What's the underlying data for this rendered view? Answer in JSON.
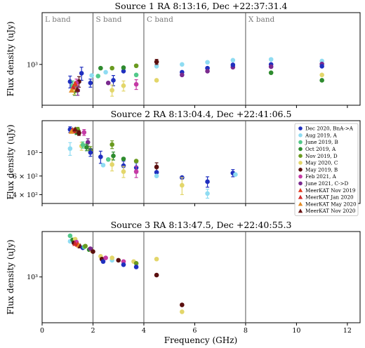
{
  "chart_data": {
    "type": "scatter",
    "xlabel": "Frequency (GHz)",
    "ylabel": "Flux density (uJy)",
    "xlim": [
      0,
      12.5
    ],
    "xticks": [
      "0",
      "2",
      "4",
      "6",
      "8",
      "10",
      "12"
    ],
    "ylog": true,
    "grid": false,
    "legend_placement": "right (Source 2 panel)",
    "band_edges": [
      2,
      4,
      8
    ],
    "bands": [
      "L band",
      "S band",
      "C band",
      "X band"
    ],
    "series_styles": [
      {
        "name": "Dec 2020, BnA->A",
        "color": "#1f2fbf",
        "marker": "circle"
      },
      {
        "name": "Aug 2019, A",
        "color": "#8fdcf2",
        "marker": "circle"
      },
      {
        "name": "June 2019, B",
        "color": "#52c98a",
        "marker": "circle"
      },
      {
        "name": "Oct 2019, A",
        "color": "#2e8b2e",
        "marker": "circle"
      },
      {
        "name": "Nov 2019, D",
        "color": "#6a9a1f",
        "marker": "circle"
      },
      {
        "name": "May 2020, C",
        "color": "#e3d66a",
        "marker": "circle"
      },
      {
        "name": "May 2019, B",
        "color": "#5a0f0f",
        "marker": "circle"
      },
      {
        "name": "Feb 2021, A",
        "color": "#c53aa5",
        "marker": "circle"
      },
      {
        "name": "June 2021, C->D",
        "color": "#7a2a8e",
        "marker": "circle"
      },
      {
        "name": "MeerKAT Nov 2019",
        "color": "#e23a1f",
        "marker": "triangle"
      },
      {
        "name": "MeerKAT Jan 2020",
        "color": "#d02a2a",
        "marker": "triangle"
      },
      {
        "name": "MeerKAT May 2020",
        "color": "#e38a22",
        "marker": "triangle"
      },
      {
        "name": "MeerKAT Nov 2020",
        "color": "#6a1515",
        "marker": "triangle"
      }
    ],
    "panels": [
      {
        "title": "Source 1 RA 8:13:16, Dec +22:37:31.4",
        "ylim": [
          400,
          3200
        ],
        "yticks": [
          {
            "value": 1000,
            "label": "10³"
          }
        ],
        "show_xticklabels": false,
        "show_band_labels": true,
        "points": [
          {
            "s": 0,
            "x": 1.1,
            "y": 680,
            "err": 90
          },
          {
            "s": 0,
            "x": 1.55,
            "y": 820,
            "err": 120
          },
          {
            "s": 0,
            "x": 1.9,
            "y": 660,
            "err": 60
          },
          {
            "s": 2,
            "x": 1.2,
            "y": 620,
            "err": 70
          },
          {
            "s": 3,
            "x": 1.28,
            "y": 560,
            "err": 60
          },
          {
            "s": 4,
            "x": 1.3,
            "y": 600,
            "err": 70
          },
          {
            "s": 5,
            "x": 1.25,
            "y": 570,
            "err": 60
          },
          {
            "s": 6,
            "x": 1.45,
            "y": 680,
            "err": 80
          },
          {
            "s": 7,
            "x": 1.35,
            "y": 660,
            "err": 60
          },
          {
            "s": 8,
            "x": 1.4,
            "y": 560,
            "err": 60
          },
          {
            "s": 9,
            "x": 1.3,
            "y": 650,
            "err": 0
          },
          {
            "s": 10,
            "x": 1.22,
            "y": 600,
            "err": 0
          },
          {
            "s": 11,
            "x": 1.16,
            "y": 560,
            "err": 0
          },
          {
            "s": 12,
            "x": 1.38,
            "y": 570,
            "err": 0
          },
          {
            "s": 1,
            "x": 1.95,
            "y": 780,
            "err": 0
          },
          {
            "s": 0,
            "x": 2.8,
            "y": 700,
            "err": 80
          },
          {
            "s": 1,
            "x": 2.5,
            "y": 840,
            "err": 0
          },
          {
            "s": 2,
            "x": 2.2,
            "y": 770,
            "err": 0
          },
          {
            "s": 3,
            "x": 2.3,
            "y": 920,
            "err": 0
          },
          {
            "s": 4,
            "x": 2.75,
            "y": 920,
            "err": 0
          },
          {
            "s": 5,
            "x": 2.75,
            "y": 560,
            "err": 70
          },
          {
            "s": 8,
            "x": 2.6,
            "y": 660,
            "err": 0
          },
          {
            "s": 0,
            "x": 3.2,
            "y": 860,
            "err": 0
          },
          {
            "s": 3,
            "x": 3.2,
            "y": 930,
            "err": 0
          },
          {
            "s": 5,
            "x": 3.2,
            "y": 620,
            "err": 70
          },
          {
            "s": 2,
            "x": 3.7,
            "y": 790,
            "err": 0
          },
          {
            "s": 4,
            "x": 3.7,
            "y": 970,
            "err": 0
          },
          {
            "s": 7,
            "x": 3.7,
            "y": 640,
            "err": 70
          },
          {
            "s": 1,
            "x": 4.5,
            "y": 960,
            "err": 0
          },
          {
            "s": 6,
            "x": 4.5,
            "y": 1060,
            "err": 60
          },
          {
            "s": 5,
            "x": 4.5,
            "y": 700,
            "err": 0
          },
          {
            "s": 0,
            "x": 5.5,
            "y": 840,
            "err": 0
          },
          {
            "s": 1,
            "x": 5.5,
            "y": 1000,
            "err": 0
          },
          {
            "s": 8,
            "x": 5.5,
            "y": 790,
            "err": 0
          },
          {
            "s": 0,
            "x": 6.5,
            "y": 920,
            "err": 0
          },
          {
            "s": 1,
            "x": 6.5,
            "y": 1050,
            "err": 0
          },
          {
            "s": 8,
            "x": 6.5,
            "y": 860,
            "err": 0
          },
          {
            "s": 1,
            "x": 7.5,
            "y": 1100,
            "err": 0
          },
          {
            "s": 8,
            "x": 7.5,
            "y": 940,
            "err": 0
          },
          {
            "s": 0,
            "x": 7.5,
            "y": 990,
            "err": 0
          },
          {
            "s": 1,
            "x": 9.0,
            "y": 1120,
            "err": 0
          },
          {
            "s": 0,
            "x": 9.0,
            "y": 1000,
            "err": 0
          },
          {
            "s": 3,
            "x": 9.0,
            "y": 830,
            "err": 0
          },
          {
            "s": 8,
            "x": 9.0,
            "y": 950,
            "err": 0
          },
          {
            "s": 1,
            "x": 11.0,
            "y": 1080,
            "err": 0
          },
          {
            "s": 8,
            "x": 11.0,
            "y": 1010,
            "err": 0
          },
          {
            "s": 0,
            "x": 11.0,
            "y": 960,
            "err": 0
          },
          {
            "s": 5,
            "x": 11.0,
            "y": 790,
            "err": 0
          },
          {
            "s": 3,
            "x": 11.0,
            "y": 700,
            "err": 0
          }
        ]
      },
      {
        "title": "Source 2 RA 8:13:04.4, Dec +22:41:06.5",
        "ylim": [
          330,
          2000
        ],
        "yticks": [
          {
            "value": 1000,
            "label": "10³"
          },
          {
            "value": 600,
            "label": "6 × 10²"
          },
          {
            "value": 400,
            "label": "4 × 10²"
          }
        ],
        "show_xticklabels": false,
        "show_band_labels": false,
        "points": [
          {
            "s": 1,
            "x": 1.1,
            "y": 1090,
            "err": 150
          },
          {
            "s": 0,
            "x": 1.1,
            "y": 1650,
            "err": 100
          },
          {
            "s": 2,
            "x": 1.3,
            "y": 1620,
            "err": 80
          },
          {
            "s": 3,
            "x": 1.35,
            "y": 1560,
            "err": 80
          },
          {
            "s": 4,
            "x": 1.4,
            "y": 1650,
            "err": 80
          },
          {
            "s": 5,
            "x": 1.55,
            "y": 1150,
            "err": 100
          },
          {
            "s": 6,
            "x": 1.45,
            "y": 1530,
            "err": 80
          },
          {
            "s": 7,
            "x": 1.65,
            "y": 1550,
            "err": 100
          },
          {
            "s": 8,
            "x": 1.8,
            "y": 1250,
            "err": 100
          },
          {
            "s": 9,
            "x": 1.2,
            "y": 1640,
            "err": 0
          },
          {
            "s": 10,
            "x": 1.25,
            "y": 1600,
            "err": 0
          },
          {
            "s": 11,
            "x": 1.15,
            "y": 1580,
            "err": 0
          },
          {
            "s": 12,
            "x": 1.3,
            "y": 1660,
            "err": 0
          },
          {
            "s": 2,
            "x": 1.6,
            "y": 1180,
            "err": 80
          },
          {
            "s": 3,
            "x": 1.75,
            "y": 1120,
            "err": 80
          },
          {
            "s": 4,
            "x": 1.9,
            "y": 1060,
            "err": 80
          },
          {
            "s": 0,
            "x": 1.9,
            "y": 1000,
            "err": 80
          },
          {
            "s": 0,
            "x": 2.3,
            "y": 910,
            "err": 120
          },
          {
            "s": 1,
            "x": 2.4,
            "y": 760,
            "err": 0
          },
          {
            "s": 5,
            "x": 2.75,
            "y": 770,
            "err": 100
          },
          {
            "s": 3,
            "x": 2.8,
            "y": 930,
            "err": 80
          },
          {
            "s": 4,
            "x": 2.75,
            "y": 1190,
            "err": 100
          },
          {
            "s": 2,
            "x": 2.6,
            "y": 860,
            "err": 0
          },
          {
            "s": 0,
            "x": 3.2,
            "y": 750,
            "err": 80
          },
          {
            "s": 3,
            "x": 3.2,
            "y": 870,
            "err": 0
          },
          {
            "s": 5,
            "x": 3.2,
            "y": 660,
            "err": 80
          },
          {
            "s": 0,
            "x": 3.7,
            "y": 720,
            "err": 80
          },
          {
            "s": 7,
            "x": 3.7,
            "y": 660,
            "err": 80
          },
          {
            "s": 4,
            "x": 3.7,
            "y": 830,
            "err": 0
          },
          {
            "s": 6,
            "x": 4.5,
            "y": 730,
            "err": 70
          },
          {
            "s": 0,
            "x": 4.5,
            "y": 650,
            "err": 0
          },
          {
            "s": 1,
            "x": 4.5,
            "y": 600,
            "err": 0
          },
          {
            "s": 0,
            "x": 5.5,
            "y": 580,
            "err": 0
          },
          {
            "s": 5,
            "x": 5.5,
            "y": 490,
            "err": 90
          },
          {
            "s": 0,
            "x": 6.5,
            "y": 530,
            "err": 60
          },
          {
            "s": 1,
            "x": 6.5,
            "y": 410,
            "err": 40
          },
          {
            "s": 0,
            "x": 7.5,
            "y": 640,
            "err": 50
          },
          {
            "s": 1,
            "x": 7.6,
            "y": 620,
            "err": 0
          }
        ]
      },
      {
        "title": "Source 3 RA 8:13:47.5, Dec +22:40:55.3",
        "ylim": [
          300,
          3300
        ],
        "yticks": [
          {
            "value": 1000,
            "label": "10³"
          }
        ],
        "show_xticklabels": true,
        "show_band_labels": false,
        "points": [
          {
            "s": 2,
            "x": 1.1,
            "y": 2950,
            "err": 0
          },
          {
            "s": 1,
            "x": 1.1,
            "y": 2550,
            "err": 0
          },
          {
            "s": 3,
            "x": 1.2,
            "y": 2650,
            "err": 0
          },
          {
            "s": 5,
            "x": 1.3,
            "y": 2700,
            "err": 0
          },
          {
            "s": 6,
            "x": 1.25,
            "y": 2450,
            "err": 0
          },
          {
            "s": 7,
            "x": 1.35,
            "y": 2500,
            "err": 0
          },
          {
            "s": 9,
            "x": 1.4,
            "y": 2350,
            "err": 0
          },
          {
            "s": 10,
            "x": 1.3,
            "y": 2400,
            "err": 0
          },
          {
            "s": 11,
            "x": 1.45,
            "y": 2300,
            "err": 0
          },
          {
            "s": 12,
            "x": 1.5,
            "y": 2250,
            "err": 0
          },
          {
            "s": 0,
            "x": 1.6,
            "y": 2150,
            "err": 0
          },
          {
            "s": 2,
            "x": 1.65,
            "y": 2200,
            "err": 0
          },
          {
            "s": 4,
            "x": 1.7,
            "y": 2250,
            "err": 0
          },
          {
            "s": 3,
            "x": 1.85,
            "y": 2050,
            "err": 0
          },
          {
            "s": 5,
            "x": 1.95,
            "y": 2000,
            "err": 0
          },
          {
            "s": 8,
            "x": 1.9,
            "y": 2100,
            "err": 0
          },
          {
            "s": 6,
            "x": 2.0,
            "y": 1950,
            "err": 0
          },
          {
            "s": 5,
            "x": 2.3,
            "y": 1720,
            "err": 0
          },
          {
            "s": 6,
            "x": 2.35,
            "y": 1600,
            "err": 0
          },
          {
            "s": 0,
            "x": 2.4,
            "y": 1500,
            "err": 0
          },
          {
            "s": 7,
            "x": 2.5,
            "y": 1650,
            "err": 0
          },
          {
            "s": 1,
            "x": 2.75,
            "y": 1550,
            "err": 0
          },
          {
            "s": 5,
            "x": 2.75,
            "y": 1650,
            "err": 0
          },
          {
            "s": 6,
            "x": 3.0,
            "y": 1550,
            "err": 0
          },
          {
            "s": 7,
            "x": 3.2,
            "y": 1500,
            "err": 0
          },
          {
            "s": 0,
            "x": 3.2,
            "y": 1380,
            "err": 0
          },
          {
            "s": 5,
            "x": 3.6,
            "y": 1500,
            "err": 0
          },
          {
            "s": 4,
            "x": 3.7,
            "y": 1430,
            "err": 0
          },
          {
            "s": 0,
            "x": 3.7,
            "y": 1300,
            "err": 0
          },
          {
            "s": 5,
            "x": 4.5,
            "y": 1600,
            "err": 0
          },
          {
            "s": 6,
            "x": 4.5,
            "y": 1050,
            "err": 0
          },
          {
            "s": 6,
            "x": 5.5,
            "y": 480,
            "err": 0
          },
          {
            "s": 5,
            "x": 5.5,
            "y": 400,
            "err": 0
          }
        ]
      }
    ]
  }
}
